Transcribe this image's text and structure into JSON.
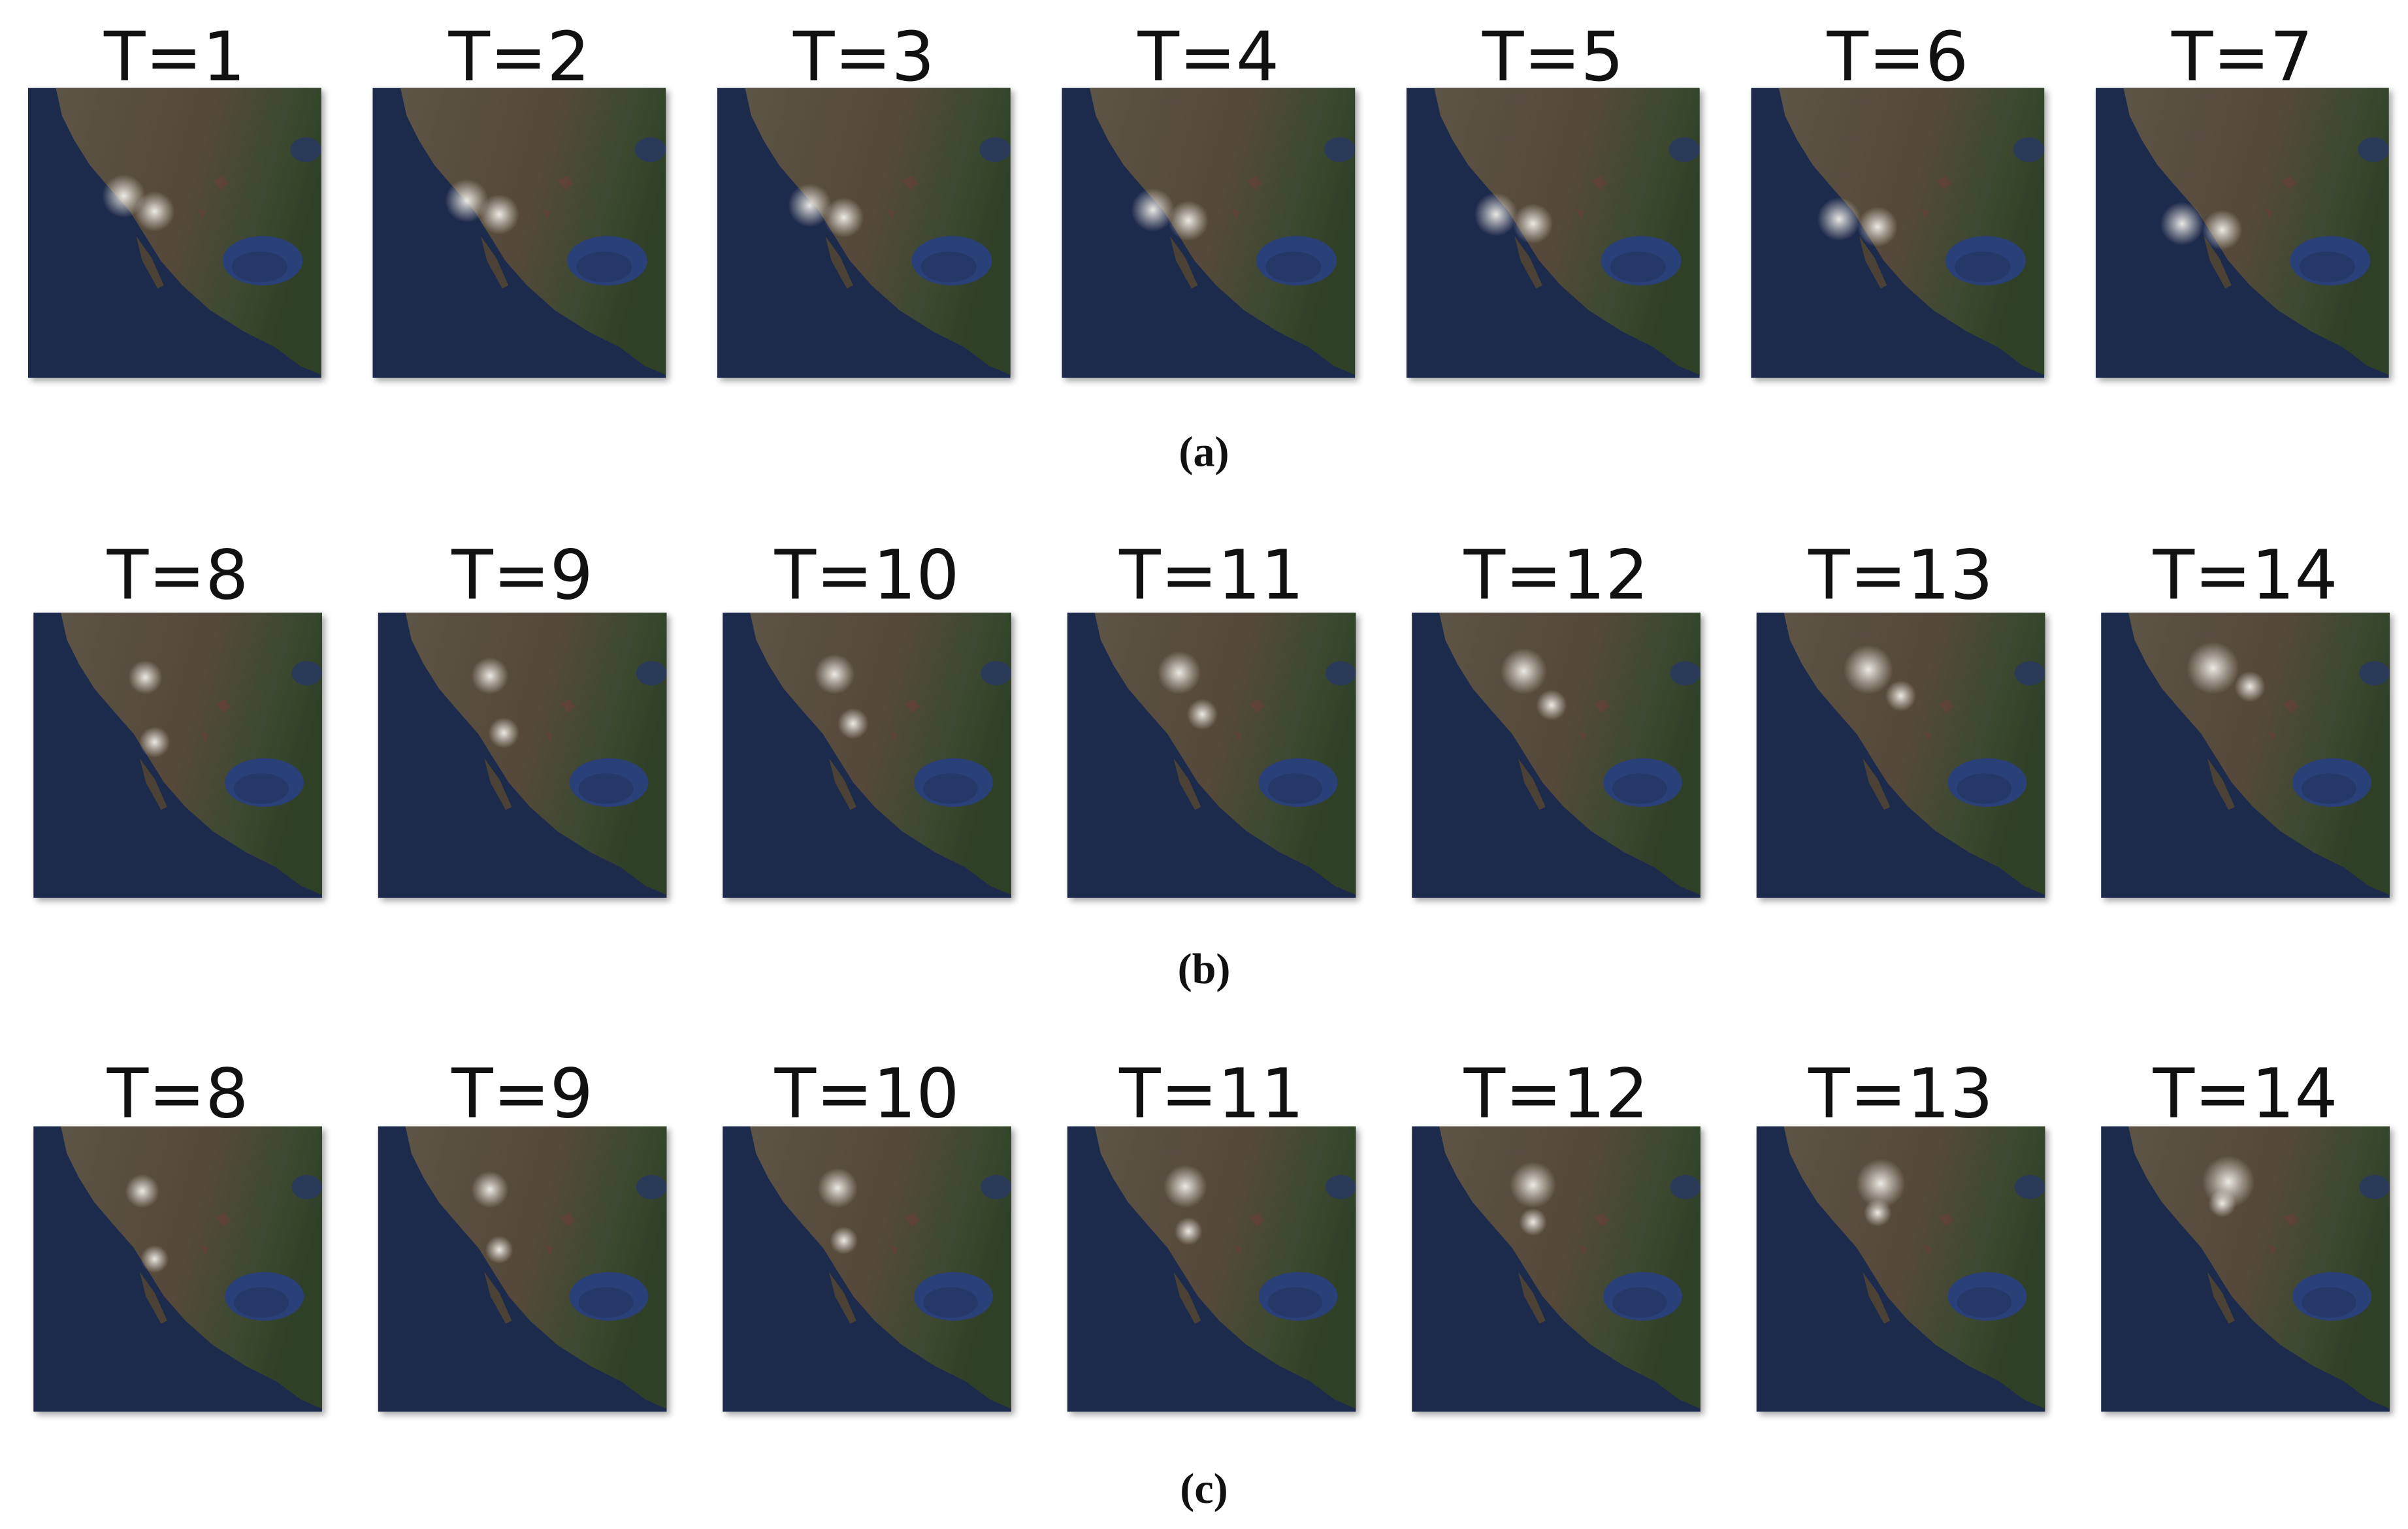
{
  "panels": [
    {
      "labels": [
        "T=1",
        "T=2",
        "T=3",
        "T=4",
        "T=5",
        "T=6",
        "T=7"
      ],
      "caption": "(a)"
    },
    {
      "labels": [
        "T=8",
        "T=9",
        "T=10",
        "T=11",
        "T=12",
        "T=13",
        "T=14"
      ],
      "caption": "(b)"
    },
    {
      "labels": [
        "T=8",
        "T=9",
        "T=10",
        "T=11",
        "T=12",
        "T=13",
        "T=14"
      ],
      "caption": "(c)"
    }
  ]
}
